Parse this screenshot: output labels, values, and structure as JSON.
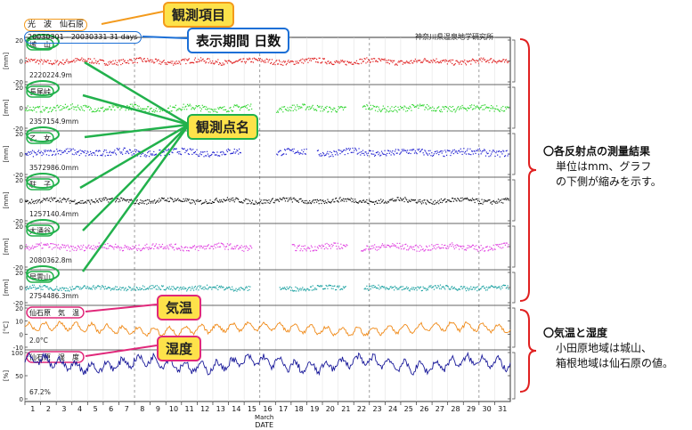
{
  "header": {
    "item_label": "光　波　仙石原",
    "period_label": "20030301 - 20030331 31 days",
    "institute": "神奈川県温泉地学研究所"
  },
  "callouts": {
    "item": "観測項目",
    "period": "表示期間 日数",
    "stations": "観測点名",
    "temperature": "気温",
    "humidity": "湿度"
  },
  "annotations": {
    "distance_head": "〇各反射点の測量結果",
    "distance_line1": "単位はmm、グラフ",
    "distance_line2": "の下側が縮みを示す。",
    "weather_head": "〇気温と湿度",
    "weather_line1": "小田原地域は城山、",
    "weather_line2": "箱根地域は仙石原の値。"
  },
  "colors": {
    "orange_box": "#f39a1c",
    "blue_box": "#1b6fd6",
    "green": "#22b14c",
    "pink": "#e0287a",
    "red_bracket": "#e02020"
  },
  "chart_data": {
    "type": "line",
    "x_label": "DATE",
    "month_label": "March",
    "days": [
      "1",
      "2",
      "3",
      "4",
      "5",
      "6",
      "7",
      "8",
      "9",
      "10",
      "11",
      "12",
      "13",
      "14",
      "15",
      "16",
      "17",
      "18",
      "19",
      "20",
      "21",
      "22",
      "23",
      "24",
      "25",
      "26",
      "27",
      "28",
      "29",
      "30",
      "31"
    ],
    "dashed_days": [
      8,
      16,
      23,
      30
    ],
    "panels": [
      {
        "station": "城　山",
        "baseline": "2220224.9m",
        "unit": "[mm]",
        "ylim": [
          -20,
          20
        ],
        "ticks": [
          "20",
          "0",
          "-20"
        ],
        "color": "#e02020",
        "style": "dots",
        "level": 0,
        "noise": 2.5,
        "gaps": []
      },
      {
        "station": "長尾峠",
        "baseline": "2357154.9mm",
        "unit": "[mm]",
        "ylim": [
          -20,
          20
        ],
        "ticks": [
          "20",
          "0",
          "-20"
        ],
        "color": "#2bd42b",
        "style": "dots",
        "level": 0,
        "noise": 3.0,
        "gaps": [
          [
            15.5,
            17.0
          ],
          [
            21.5,
            22.5
          ]
        ]
      },
      {
        "station": "乙　女",
        "baseline": "3572986.0mm",
        "unit": "[mm]",
        "ylim": [
          -20,
          20
        ],
        "ticks": [
          "20",
          "0",
          "-20"
        ],
        "color": "#2020d0",
        "style": "dots",
        "level": 2,
        "noise": 3.2,
        "gaps": [
          [
            14.8,
            17.0
          ],
          [
            19.0,
            19.6
          ]
        ]
      },
      {
        "station": "駐　子",
        "baseline": "1257140.4mm",
        "unit": "[mm]",
        "ylim": [
          -20,
          20
        ],
        "ticks": [
          "20",
          "0",
          "-20"
        ],
        "color": "#111111",
        "style": "dots",
        "level": 0,
        "noise": 2.3,
        "gaps": []
      },
      {
        "station": "大涌谷",
        "baseline": "2080362.8m",
        "unit": "[mm]",
        "ylim": [
          -20,
          20
        ],
        "ticks": [
          "20",
          "0",
          "-20"
        ],
        "color": "#e040e0",
        "style": "dots",
        "level": 0,
        "noise": 3.0,
        "gaps": [
          [
            15.5,
            18.0
          ],
          [
            21.6,
            22.4
          ]
        ]
      },
      {
        "station": "早雲山",
        "baseline": "2754486.3mm",
        "unit": "[mm]",
        "ylim": [
          -20,
          20
        ],
        "ticks": [
          "20",
          "0",
          "-20"
        ],
        "color": "#18a0a0",
        "style": "dots",
        "level": 0,
        "noise": 3.0,
        "gaps": [
          [
            15.4,
            17.2
          ],
          [
            21.5,
            22.6
          ]
        ]
      },
      {
        "station": "仙石原　気　温",
        "baseline": "2.0°C",
        "unit": "[°C]",
        "ylim": [
          -10,
          20
        ],
        "ticks": [
          "20",
          "10",
          "0",
          "-10"
        ],
        "color": "#f08a18",
        "style": "line",
        "level": 4,
        "noise": 2.5,
        "gaps": []
      },
      {
        "station": "仙石原　湿　度",
        "baseline": "67.2%",
        "unit": "[%]",
        "ylim": [
          0,
          100
        ],
        "ticks": [
          "100",
          "50",
          "0"
        ],
        "color": "#1a1a9a",
        "style": "line",
        "level": 75,
        "noise": 14,
        "gaps": []
      }
    ]
  }
}
